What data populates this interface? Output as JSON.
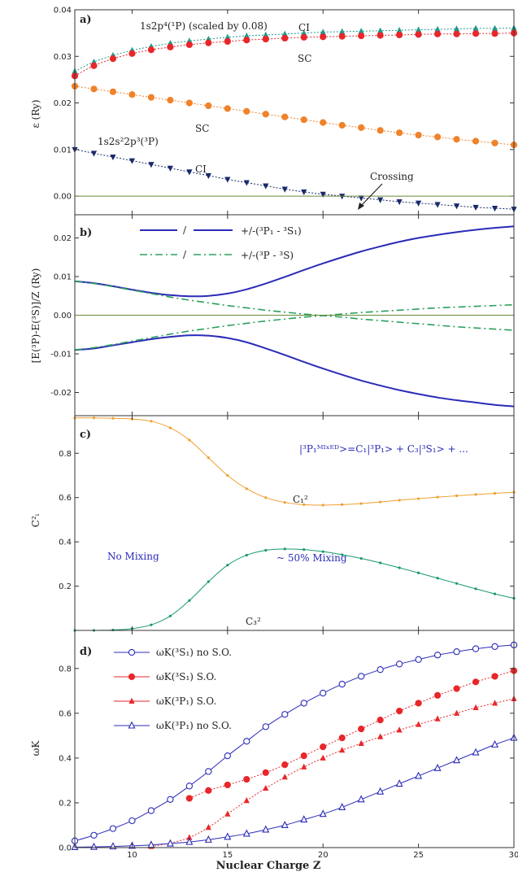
{
  "figure": {
    "xlabel": "Nuclear Charge Z",
    "xlim": [
      7,
      30
    ],
    "xticks": [
      10,
      15,
      20,
      25,
      30
    ]
  },
  "chart_data": [
    {
      "panel": "a)",
      "type": "line",
      "ylabel": "ε (Ry)",
      "ylim": [
        -0.004,
        0.04
      ],
      "yticks": [
        0.0,
        0.01,
        0.02,
        0.03,
        0.04
      ],
      "ytick_labels": [
        "0.00",
        "0.01",
        "0.02",
        "0.03",
        "0.04"
      ],
      "annotations": {
        "title_1p": "1s2p⁴(¹P) (scaled by 0.08)",
        "ci_top": "CI",
        "sc_top": "SC",
        "sc_mid": "SC",
        "title_3p": "1s2s²2p³(³P)",
        "ci_bot": "CI",
        "crossing": "Crossing"
      },
      "series": [
        {
          "color": "#1f9a8a",
          "marker": "triangle-up",
          "x": [
            7,
            8,
            9,
            10,
            11,
            12,
            13,
            14,
            15,
            16,
            17,
            18,
            19,
            20,
            21,
            22,
            23,
            24,
            25,
            26,
            27,
            28,
            29,
            30
          ],
          "y": [
            0.0268,
            0.0288,
            0.0302,
            0.0313,
            0.0321,
            0.0328,
            0.0333,
            0.0337,
            0.0341,
            0.0344,
            0.0346,
            0.0348,
            0.035,
            0.0352,
            0.0353,
            0.0354,
            0.0355,
            0.0356,
            0.0357,
            0.0358,
            0.0359,
            0.036,
            0.036,
            0.0361
          ]
        },
        {
          "color": "#e8272b",
          "marker": "circle",
          "x": [
            7,
            8,
            9,
            10,
            11,
            12,
            13,
            14,
            15,
            16,
            17,
            18,
            19,
            20,
            21,
            22,
            23,
            24,
            25,
            26,
            27,
            28,
            29,
            30
          ],
          "y": [
            0.0258,
            0.028,
            0.0295,
            0.0306,
            0.0314,
            0.032,
            0.0325,
            0.0329,
            0.0332,
            0.0335,
            0.0337,
            0.0339,
            0.0341,
            0.0342,
            0.0343,
            0.0344,
            0.0345,
            0.0346,
            0.0347,
            0.0348,
            0.0348,
            0.0349,
            0.0349,
            0.035
          ]
        },
        {
          "color": "#f0822a",
          "marker": "circle",
          "x": [
            7,
            8,
            9,
            10,
            11,
            12,
            13,
            14,
            15,
            16,
            17,
            18,
            19,
            20,
            21,
            22,
            23,
            24,
            25,
            26,
            27,
            28,
            29,
            30
          ],
          "y": [
            0.0236,
            0.023,
            0.0224,
            0.0218,
            0.0212,
            0.0206,
            0.02,
            0.0194,
            0.0188,
            0.0182,
            0.0176,
            0.017,
            0.0164,
            0.0158,
            0.0152,
            0.0147,
            0.0141,
            0.0136,
            0.0131,
            0.0127,
            0.0122,
            0.0118,
            0.0114,
            0.011
          ]
        },
        {
          "color": "#1a2a6c",
          "marker": "triangle-down",
          "x": [
            7,
            8,
            9,
            10,
            11,
            12,
            13,
            14,
            15,
            16,
            17,
            18,
            19,
            20,
            21,
            22,
            23,
            24,
            25,
            26,
            27,
            28,
            29,
            30
          ],
          "y": [
            0.01,
            0.0092,
            0.0084,
            0.0076,
            0.0068,
            0.006,
            0.0052,
            0.0044,
            0.0036,
            0.0029,
            0.0022,
            0.0015,
            0.0009,
            0.0004,
            0.0,
            -0.0004,
            -0.0008,
            -0.0012,
            -0.0015,
            -0.0018,
            -0.0021,
            -0.0024,
            -0.0026,
            -0.0028
          ]
        }
      ]
    },
    {
      "panel": "b)",
      "type": "line",
      "ylabel": "[E(³P)-E(³S)]/Z (Ry)",
      "ylim": [
        -0.026,
        0.026
      ],
      "yticks": [
        -0.02,
        -0.01,
        0.0,
        0.01,
        0.02
      ],
      "ytick_labels": [
        "-0.02",
        "-0.01",
        "0.00",
        "0.01",
        "0.02"
      ],
      "legend": [
        {
          "text": "+/-(³P₁ - ³S₁)",
          "color": "#2b2bb8",
          "dash": "solid"
        },
        {
          "text": "+/-(³P - ³S)",
          "color": "#2aa05a",
          "dash": "dashdot"
        }
      ],
      "legend_separator": "/",
      "series": [
        {
          "color": "#2b2bb8",
          "dash": "solid",
          "x": [
            7,
            8,
            9,
            10,
            11,
            12,
            13,
            14,
            15,
            16,
            17,
            18,
            19,
            20,
            21,
            22,
            23,
            24,
            25,
            26,
            27,
            28,
            29,
            30
          ],
          "y": [
            0.0088,
            0.0083,
            0.0075,
            0.0066,
            0.0058,
            0.0052,
            0.0049,
            0.005,
            0.0056,
            0.0067,
            0.0082,
            0.0099,
            0.0117,
            0.0134,
            0.015,
            0.0165,
            0.0178,
            0.019,
            0.02,
            0.0208,
            0.0215,
            0.0221,
            0.0226,
            0.023
          ]
        },
        {
          "color": "#2b2bb8",
          "dash": "solid",
          "x": [
            7,
            8,
            9,
            10,
            11,
            12,
            13,
            14,
            15,
            16,
            17,
            18,
            19,
            20,
            21,
            22,
            23,
            24,
            25,
            26,
            27,
            28,
            29,
            30
          ],
          "y": [
            -0.009,
            -0.0086,
            -0.0078,
            -0.007,
            -0.0062,
            -0.0056,
            -0.0052,
            -0.0053,
            -0.0059,
            -0.007,
            -0.0086,
            -0.0103,
            -0.0121,
            -0.0138,
            -0.0154,
            -0.0169,
            -0.0182,
            -0.0194,
            -0.0204,
            -0.0213,
            -0.022,
            -0.0226,
            -0.0232,
            -0.0236
          ]
        },
        {
          "color": "#2aa05a",
          "dash": "dashdot",
          "x": [
            7,
            8,
            9,
            10,
            11,
            12,
            13,
            14,
            15,
            16,
            17,
            18,
            19,
            20,
            21,
            22,
            23,
            24,
            25,
            26,
            27,
            28,
            29,
            30
          ],
          "y": [
            0.0088,
            0.0082,
            0.0074,
            0.0065,
            0.0056,
            0.0047,
            0.0039,
            0.0032,
            0.0025,
            0.0019,
            0.0013,
            0.0008,
            0.0003,
            -0.0001,
            -0.0005,
            -0.001,
            -0.0014,
            -0.0018,
            -0.0022,
            -0.0026,
            -0.003,
            -0.0033,
            -0.0036,
            -0.0039
          ]
        },
        {
          "color": "#2aa05a",
          "dash": "dashdot",
          "x": [
            7,
            8,
            9,
            10,
            11,
            12,
            13,
            14,
            15,
            16,
            17,
            18,
            19,
            20,
            21,
            22,
            23,
            24,
            25,
            26,
            27,
            28,
            29,
            30
          ],
          "y": [
            -0.009,
            -0.0084,
            -0.0076,
            -0.0067,
            -0.0058,
            -0.0049,
            -0.0041,
            -0.0034,
            -0.0027,
            -0.0021,
            -0.0015,
            -0.001,
            -0.0005,
            -0.0001,
            0.0003,
            0.0007,
            0.001,
            0.0013,
            0.0016,
            0.0019,
            0.0021,
            0.0023,
            0.0025,
            0.0027
          ]
        }
      ]
    },
    {
      "panel": "c)",
      "type": "line",
      "ylabel": "C²ᵢ",
      "ylim": [
        0,
        0.97
      ],
      "yticks": [
        0.0,
        0.2,
        0.4,
        0.6,
        0.8
      ],
      "ytick_labels": [
        "0.0",
        "0.2",
        "0.4",
        "0.6",
        "0.8"
      ],
      "annotations": {
        "state_eq": "|³P₁ᴹᴵˣᴱᴰ>=C₁|³P₁> + C₃|³S₁> + ...",
        "c1": "C₁²",
        "c3": "C₃²",
        "no_mixing": "No Mixing",
        "mixing": "~ 50% Mixing"
      },
      "series": [
        {
          "color": "#f0a030",
          "marker": "small",
          "x": [
            7,
            8,
            9,
            10,
            11,
            12,
            13,
            14,
            15,
            16,
            17,
            18,
            19,
            20,
            21,
            22,
            23,
            24,
            25,
            26,
            27,
            28,
            29,
            30
          ],
          "y": [
            0.96,
            0.96,
            0.958,
            0.955,
            0.945,
            0.915,
            0.86,
            0.78,
            0.7,
            0.64,
            0.6,
            0.578,
            0.568,
            0.566,
            0.568,
            0.573,
            0.58,
            0.588,
            0.595,
            0.602,
            0.608,
            0.614,
            0.619,
            0.624
          ]
        },
        {
          "color": "#1a9a6a",
          "marker": "small",
          "x": [
            7,
            8,
            9,
            10,
            11,
            12,
            13,
            14,
            15,
            16,
            17,
            18,
            19,
            20,
            21,
            22,
            23,
            24,
            25,
            26,
            27,
            28,
            29,
            30
          ],
          "y": [
            0.0,
            0.0,
            0.002,
            0.008,
            0.025,
            0.065,
            0.135,
            0.22,
            0.295,
            0.34,
            0.362,
            0.368,
            0.365,
            0.356,
            0.342,
            0.325,
            0.305,
            0.283,
            0.26,
            0.236,
            0.212,
            0.188,
            0.165,
            0.145
          ]
        }
      ]
    },
    {
      "panel": "d)",
      "type": "line",
      "ylabel": "ωK",
      "ylim": [
        0,
        0.97
      ],
      "yticks": [
        0.0,
        0.2,
        0.4,
        0.6,
        0.8
      ],
      "ytick_labels": [
        "0.0",
        "0.2",
        "0.4",
        "0.6",
        "0.8"
      ],
      "legend": [
        {
          "text": "ωK(³S₁)  no S.O.",
          "marker": "circle-open",
          "color": "#2b2bb8"
        },
        {
          "text": "ωK(³S₁)       S.O.",
          "marker": "circle",
          "color": "#e8272b"
        },
        {
          "text": "ωK(³P₁)       S.O.",
          "marker": "triangle-up",
          "color": "#e8272b"
        },
        {
          "text": "ωK(³P₁)  no S.O.",
          "marker": "triangle-up-open",
          "color": "#2b2bb8"
        }
      ],
      "series": [
        {
          "color": "#2b2bb8",
          "marker": "circle-open",
          "x": [
            7,
            8,
            9,
            10,
            11,
            12,
            13,
            14,
            15,
            16,
            17,
            18,
            19,
            20,
            21,
            22,
            23,
            24,
            25,
            26,
            27,
            28,
            29,
            30
          ],
          "y": [
            0.03,
            0.055,
            0.085,
            0.12,
            0.165,
            0.215,
            0.275,
            0.34,
            0.41,
            0.475,
            0.54,
            0.595,
            0.645,
            0.69,
            0.73,
            0.765,
            0.795,
            0.82,
            0.84,
            0.86,
            0.875,
            0.888,
            0.898,
            0.905
          ]
        },
        {
          "color": "#e8272b",
          "marker": "circle",
          "x": [
            13,
            14,
            15,
            16,
            17,
            18,
            19,
            20,
            21,
            22,
            23,
            24,
            25,
            26,
            27,
            28,
            29,
            30
          ],
          "y": [
            0.22,
            0.255,
            0.28,
            0.305,
            0.335,
            0.37,
            0.41,
            0.45,
            0.49,
            0.53,
            0.57,
            0.61,
            0.645,
            0.68,
            0.71,
            0.74,
            0.765,
            0.79
          ]
        },
        {
          "color": "#e8272b",
          "marker": "triangle-up",
          "x": [
            11,
            12,
            13,
            14,
            15,
            16,
            17,
            18,
            19,
            20,
            21,
            22,
            23,
            24,
            25,
            26,
            27,
            28,
            29,
            30
          ],
          "y": [
            0.005,
            0.02,
            0.045,
            0.09,
            0.15,
            0.21,
            0.265,
            0.315,
            0.36,
            0.4,
            0.435,
            0.465,
            0.495,
            0.525,
            0.55,
            0.575,
            0.6,
            0.625,
            0.645,
            0.665
          ]
        },
        {
          "color": "#2b2bb8",
          "marker": "triangle-up-open",
          "x": [
            7,
            8,
            9,
            10,
            11,
            12,
            13,
            14,
            15,
            16,
            17,
            18,
            19,
            20,
            21,
            22,
            23,
            24,
            25,
            26,
            27,
            28,
            29,
            30
          ],
          "y": [
            0.002,
            0.003,
            0.005,
            0.008,
            0.012,
            0.018,
            0.025,
            0.035,
            0.048,
            0.062,
            0.08,
            0.1,
            0.125,
            0.15,
            0.18,
            0.215,
            0.25,
            0.285,
            0.32,
            0.355,
            0.39,
            0.425,
            0.46,
            0.49
          ]
        }
      ]
    }
  ]
}
